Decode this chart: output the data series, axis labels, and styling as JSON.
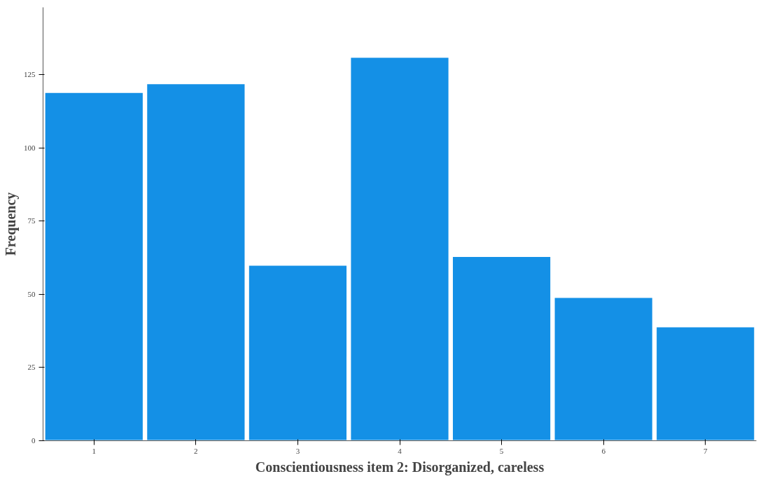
{
  "chart_data": {
    "type": "bar",
    "xlabel": "Conscientiousness item 2: Disorganized, careless",
    "ylabel": "Frequency",
    "categories": [
      "1",
      "2",
      "3",
      "4",
      "5",
      "6",
      "7"
    ],
    "values": [
      119,
      122,
      60,
      131,
      63,
      49,
      39
    ],
    "color": "#1490e6",
    "ylim": [
      0,
      148
    ],
    "yticks": [
      0,
      25,
      50,
      75,
      100,
      125
    ],
    "grid": false
  }
}
